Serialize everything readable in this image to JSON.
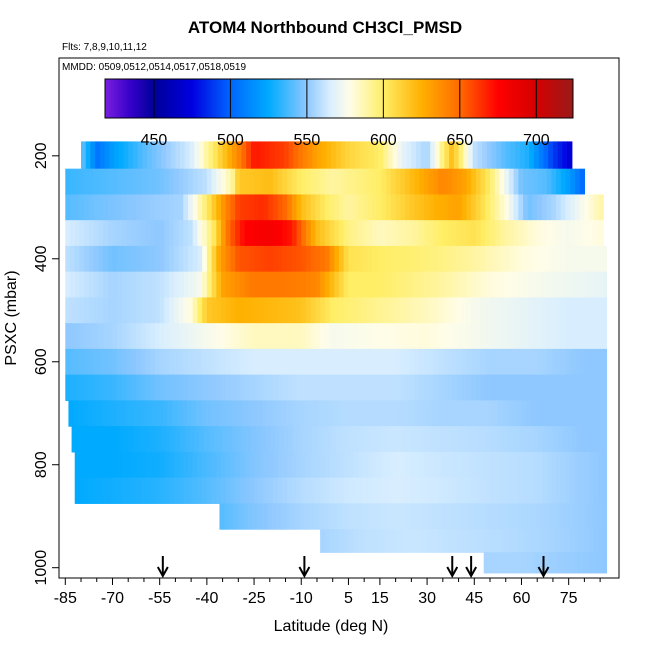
{
  "title": "ATOM4 Northbound CH3Cl_PMSD",
  "flights_note": "Flts: 7,8,9,10,11,12",
  "dates_note": "MMDD: 0509,0512,0514,0517,0518,0519",
  "chart_data": {
    "type": "heatmap",
    "title": "ATOM4 Northbound CH3Cl_PMSD",
    "xlabel": "Latitude (deg N)",
    "ylabel": "PSXC (mbar)",
    "xlim": [
      -87,
      91
    ],
    "ylim": [
      1020,
      10
    ],
    "x_ticks": [
      -85,
      -70,
      -55,
      -40,
      -25,
      -10,
      5,
      15,
      30,
      45,
      60,
      75
    ],
    "y_ticks": [
      200,
      400,
      600,
      800,
      1000
    ],
    "colorbar": {
      "range": [
        418,
        724
      ],
      "ticks": [
        450,
        500,
        550,
        600,
        650,
        700
      ],
      "stops": [
        {
          "v": 418,
          "c": "#7a1fe0"
        },
        {
          "v": 435,
          "c": "#3400c8"
        },
        {
          "v": 450,
          "c": "#000099"
        },
        {
          "v": 475,
          "c": "#0000e0"
        },
        {
          "v": 500,
          "c": "#0066ff"
        },
        {
          "v": 525,
          "c": "#00aaff"
        },
        {
          "v": 550,
          "c": "#8ec8ff"
        },
        {
          "v": 565,
          "c": "#d8eeff"
        },
        {
          "v": 578,
          "c": "#fffde8"
        },
        {
          "v": 600,
          "c": "#ffee66"
        },
        {
          "v": 625,
          "c": "#ffb000"
        },
        {
          "v": 650,
          "c": "#ff6a00"
        },
        {
          "v": 675,
          "c": "#ff0000"
        },
        {
          "v": 700,
          "c": "#d40000"
        },
        {
          "v": 724,
          "c": "#9a1a1a"
        }
      ]
    },
    "levels": [
      {
        "p": 200,
        "lat": [
          -80,
          76
        ],
        "lat_knots": [
          -80,
          -75,
          -70,
          -60,
          -45,
          -38,
          -30,
          -25,
          -15,
          -5,
          5,
          15,
          22,
          30,
          38,
          45,
          55,
          62,
          70,
          76
        ],
        "values": [
          545,
          505,
          520,
          540,
          565,
          600,
          640,
          670,
          660,
          630,
          610,
          600,
          570,
          555,
          620,
          560,
          540,
          530,
          490,
          470
        ]
      },
      {
        "p": 250,
        "lat": [
          -85,
          80
        ],
        "lat_knots": [
          -85,
          -70,
          -55,
          -40,
          -32,
          -30,
          -20,
          -10,
          0,
          15,
          25,
          35,
          42,
          50,
          60,
          68,
          75,
          80
        ],
        "values": [
          535,
          540,
          545,
          560,
          590,
          615,
          620,
          600,
          590,
          600,
          620,
          640,
          630,
          600,
          545,
          540,
          520,
          500
        ]
      },
      {
        "p": 300,
        "lat": [
          -85,
          86
        ],
        "lat_knots": [
          -85,
          -75,
          -62,
          -48,
          -40,
          -34,
          -30,
          -22,
          -15,
          -10,
          -2,
          5,
          15,
          25,
          33,
          40,
          48,
          55,
          62,
          70,
          86
        ],
        "values": [
          540,
          545,
          550,
          555,
          600,
          640,
          660,
          665,
          650,
          620,
          600,
          590,
          600,
          615,
          625,
          630,
          605,
          580,
          545,
          555,
          590
        ]
      },
      {
        "p": 350,
        "lat": [
          -85,
          86
        ],
        "lat_knots": [
          -85,
          -70,
          -55,
          -45,
          -38,
          -33,
          -28,
          -20,
          -13,
          -5,
          5,
          15,
          25,
          35,
          45,
          55,
          65,
          75,
          86
        ],
        "values": [
          565,
          555,
          550,
          560,
          600,
          650,
          675,
          680,
          670,
          620,
          595,
          585,
          590,
          600,
          605,
          590,
          580,
          575,
          580
        ]
      },
      {
        "p": 400,
        "lat": [
          -85,
          87
        ],
        "lat_knots": [
          -85,
          -70,
          -55,
          -42,
          -36,
          -30,
          -20,
          -10,
          -2,
          5,
          15,
          25,
          35,
          45,
          60,
          75,
          87
        ],
        "values": [
          560,
          545,
          550,
          565,
          630,
          655,
          660,
          655,
          645,
          605,
          600,
          598,
          595,
          590,
          580,
          575,
          575
        ]
      },
      {
        "p": 450,
        "lat": [
          -85,
          87
        ],
        "lat_knots": [
          -85,
          -70,
          -55,
          -42,
          -35,
          -25,
          -15,
          -5,
          5,
          15,
          25,
          35,
          50,
          65,
          87
        ],
        "values": [
          565,
          555,
          560,
          575,
          630,
          645,
          645,
          640,
          600,
          600,
          595,
          590,
          580,
          575,
          570
        ]
      },
      {
        "p": 500,
        "lat": [
          -85,
          87
        ],
        "lat_knots": [
          -85,
          -70,
          -55,
          -45,
          -40,
          -30,
          -20,
          -10,
          0,
          10,
          20,
          30,
          45,
          60,
          75,
          87
        ],
        "values": [
          560,
          555,
          560,
          580,
          615,
          625,
          622,
          618,
          600,
          595,
          590,
          585,
          575,
          570,
          565,
          565
        ]
      },
      {
        "p": 550,
        "lat": [
          -85,
          87
        ],
        "lat_knots": [
          -85,
          -70,
          -55,
          -40,
          -25,
          -10,
          0,
          15,
          30,
          45,
          60,
          75,
          87
        ],
        "values": [
          550,
          555,
          565,
          575,
          585,
          585,
          575,
          578,
          580,
          575,
          570,
          565,
          565
        ]
      },
      {
        "p": 600,
        "lat": [
          -85,
          87
        ],
        "lat_knots": [
          -85,
          -70,
          -55,
          -40,
          -25,
          -10,
          5,
          20,
          35,
          50,
          65,
          80,
          87
        ],
        "values": [
          540,
          545,
          555,
          560,
          565,
          565,
          565,
          565,
          560,
          555,
          555,
          550,
          550
        ]
      },
      {
        "p": 650,
        "lat": [
          -85,
          87
        ],
        "lat_knots": [
          -85,
          -70,
          -55,
          -40,
          -25,
          -10,
          5,
          20,
          35,
          50,
          65,
          80,
          87
        ],
        "values": [
          530,
          535,
          545,
          550,
          555,
          560,
          560,
          560,
          555,
          550,
          550,
          550,
          550
        ]
      },
      {
        "p": 700,
        "lat": [
          -84,
          87
        ],
        "lat_knots": [
          -84,
          -70,
          -55,
          -40,
          -25,
          -10,
          5,
          20,
          35,
          50,
          65,
          80,
          87
        ],
        "values": [
          525,
          530,
          535,
          545,
          550,
          555,
          558,
          558,
          555,
          555,
          550,
          550,
          550
        ]
      },
      {
        "p": 750,
        "lat": [
          -83,
          87
        ],
        "lat_knots": [
          -83,
          -70,
          -55,
          -40,
          -25,
          -10,
          5,
          20,
          35,
          50,
          65,
          80,
          87
        ],
        "values": [
          525,
          525,
          530,
          540,
          548,
          555,
          560,
          562,
          560,
          558,
          555,
          550,
          550
        ]
      },
      {
        "p": 800,
        "lat": [
          -82,
          87
        ],
        "lat_knots": [
          -82,
          -70,
          -55,
          -40,
          -25,
          -10,
          5,
          20,
          35,
          50,
          65,
          80,
          87
        ],
        "values": [
          525,
          525,
          528,
          538,
          548,
          555,
          560,
          565,
          562,
          560,
          558,
          552,
          550
        ]
      },
      {
        "p": 850,
        "lat": [
          -82,
          87
        ],
        "lat_knots": [
          -82,
          -70,
          -55,
          -40,
          -25,
          -10,
          5,
          20,
          35,
          50,
          65,
          80,
          87
        ],
        "values": [
          525,
          528,
          532,
          540,
          550,
          558,
          563,
          565,
          563,
          560,
          558,
          552,
          550
        ]
      },
      {
        "p": 900,
        "lat": [
          -36,
          87
        ],
        "lat_knots": [
          -36,
          -25,
          -10,
          5,
          20,
          35,
          50,
          65,
          80,
          87
        ],
        "values": [
          540,
          548,
          555,
          560,
          562,
          560,
          558,
          556,
          552,
          550
        ]
      },
      {
        "p": 950,
        "lat": [
          -4,
          87
        ],
        "lat_knots": [
          -4,
          10,
          25,
          40,
          55,
          70,
          87
        ],
        "values": [
          555,
          560,
          562,
          560,
          558,
          555,
          550
        ]
      },
      {
        "p": 990,
        "lat": [
          48,
          87
        ],
        "lat_knots": [
          48,
          60,
          75,
          87
        ],
        "values": [
          555,
          555,
          552,
          550
        ]
      }
    ],
    "markers_lat": [
      -54,
      -9,
      38,
      44,
      67
    ]
  }
}
